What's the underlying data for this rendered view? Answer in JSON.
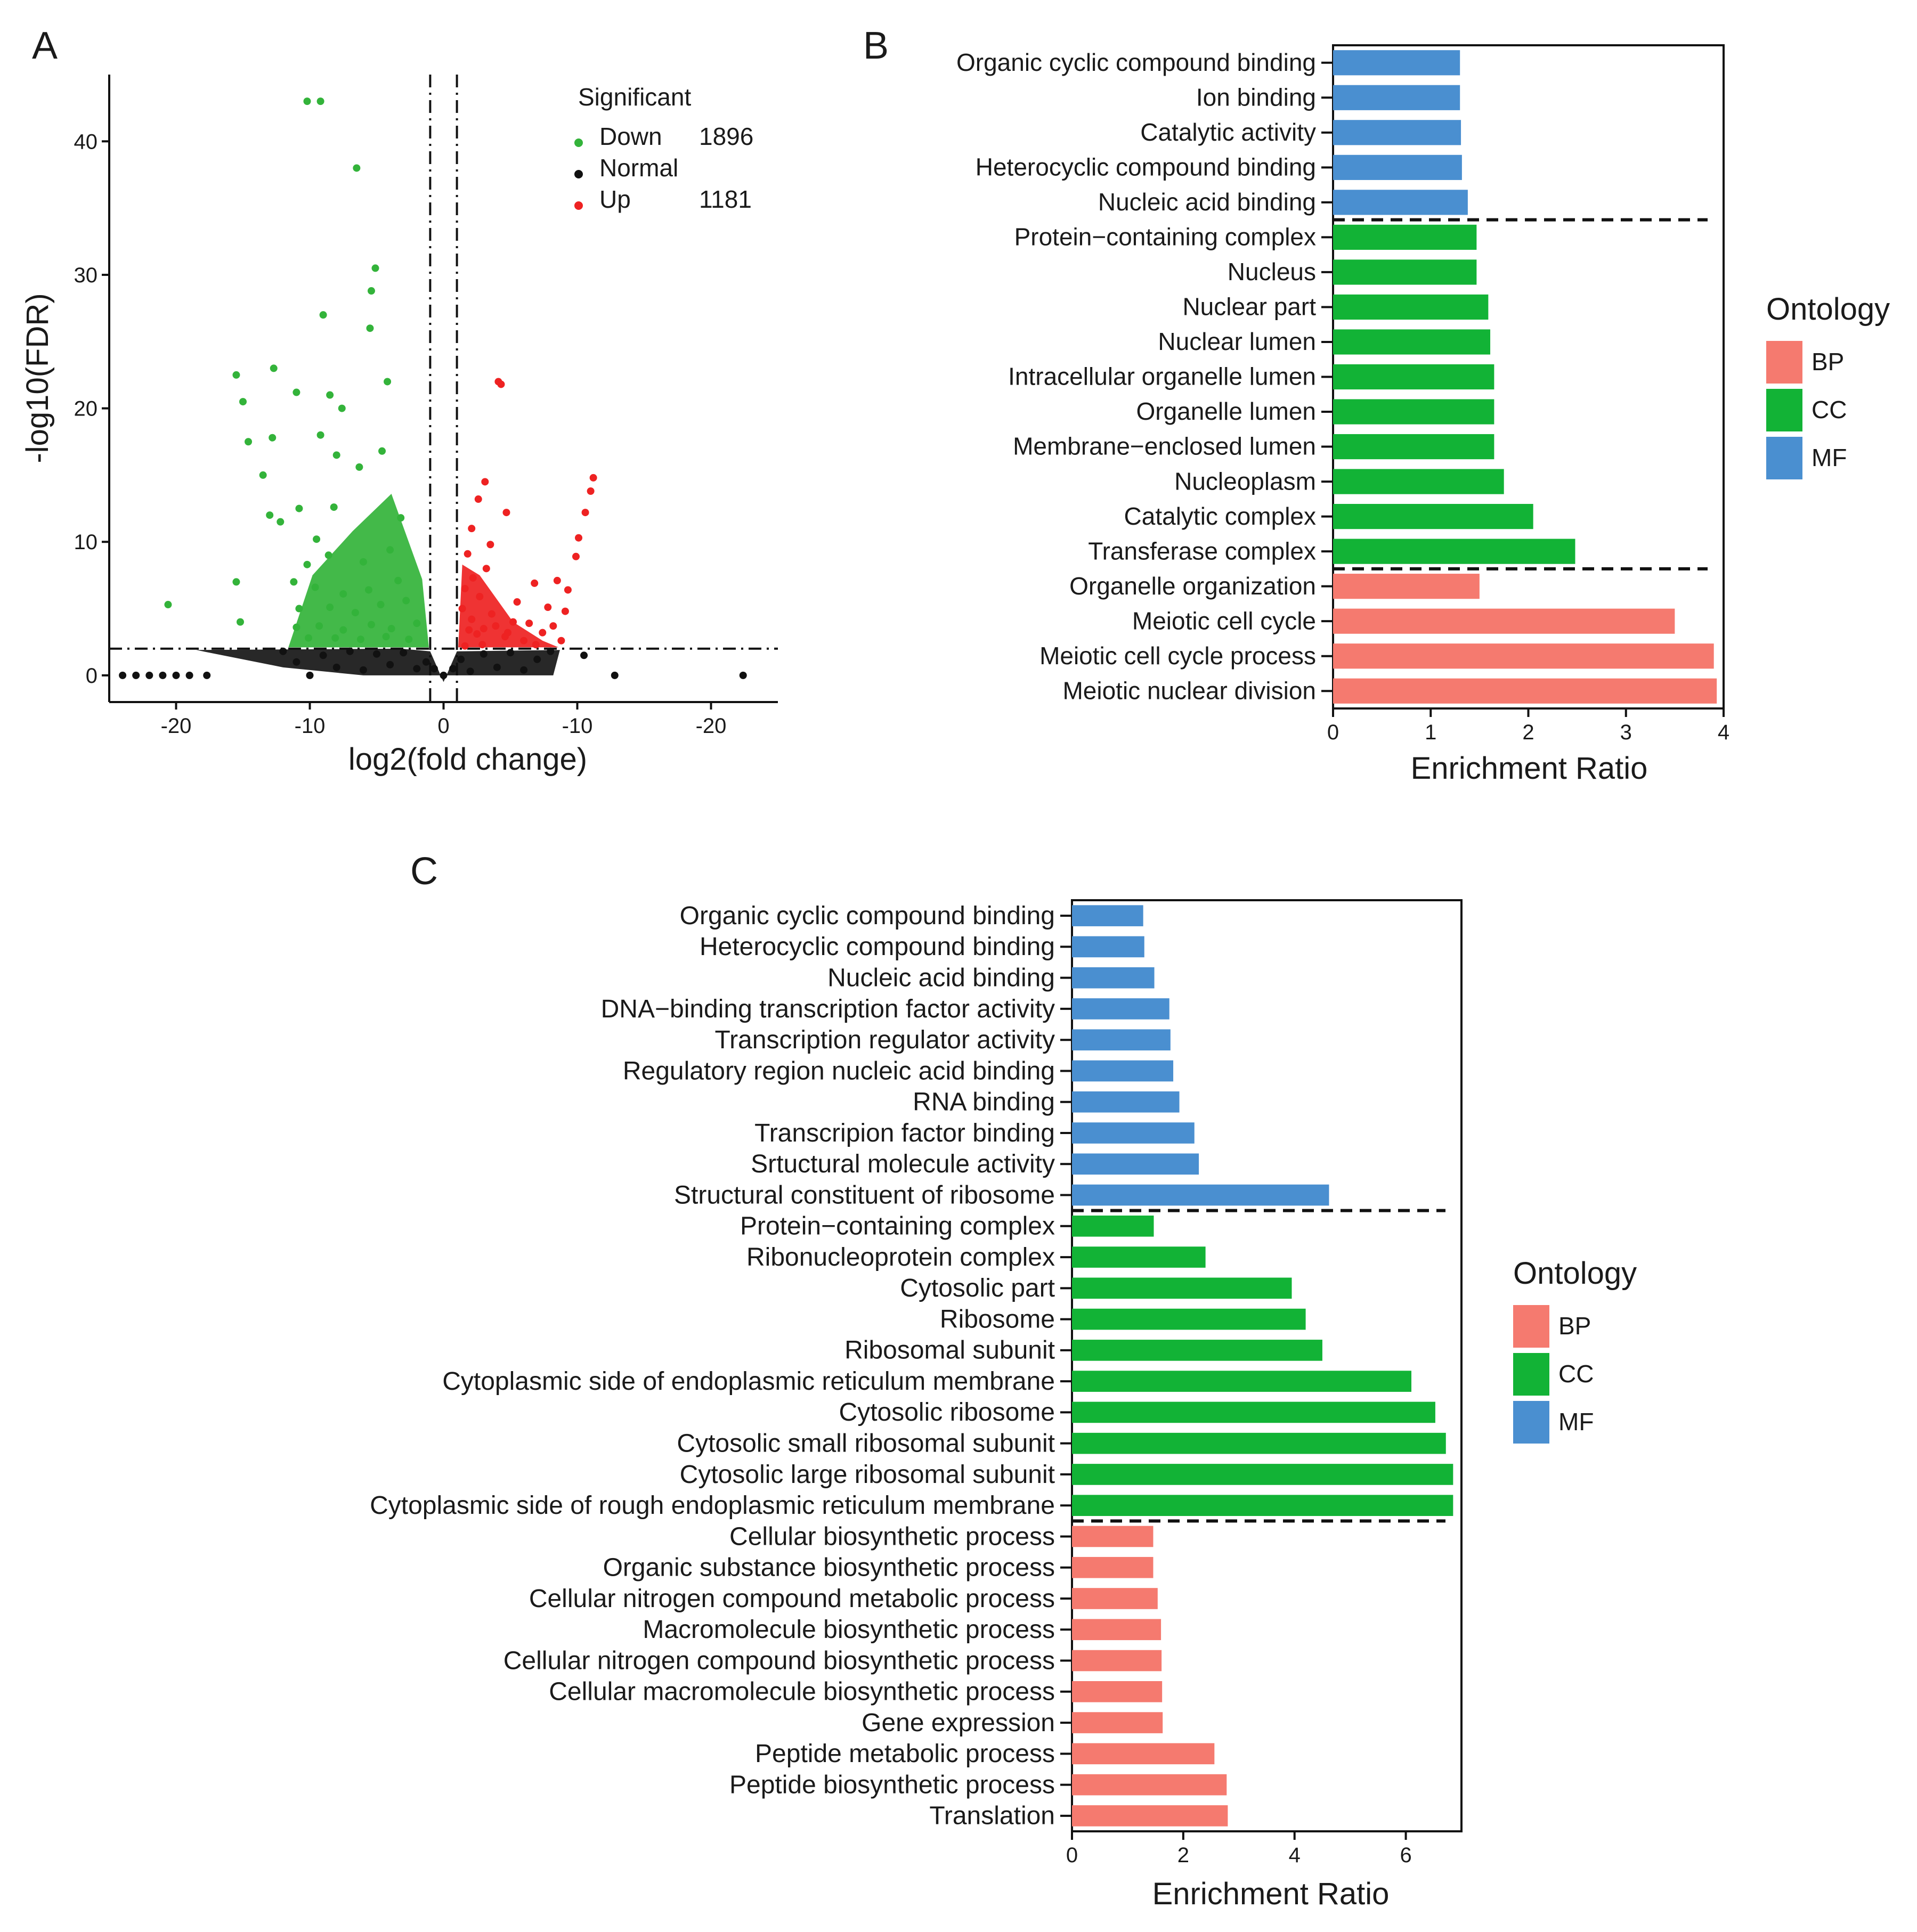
{
  "colors": {
    "BP": "#f57a6f",
    "CC": "#12b336",
    "MF": "#4a8fd0",
    "down": "#33b33a",
    "normal": "#111111",
    "up": "#ee2222"
  },
  "chart_data": [
    {
      "panel": "A",
      "type": "scatter",
      "xlabel": "log2(fold change)",
      "ylabel": "-log10(FDR)",
      "xticks": [
        "-20",
        "-10",
        "0",
        "-10",
        "-20"
      ],
      "xlim": [
        -25,
        25
      ],
      "yticks": [
        0,
        10,
        20,
        30,
        40
      ],
      "ylim": [
        -2,
        45
      ],
      "thresholds": {
        "x": [
          -1,
          1
        ],
        "y": 2
      },
      "legend": {
        "title": "Significant",
        "position": "top-right",
        "items": [
          {
            "key": "down",
            "label": "Down",
            "count": "1896"
          },
          {
            "key": "normal",
            "label": "Normal",
            "count": ""
          },
          {
            "key": "up",
            "label": "Up",
            "count": "1181"
          }
        ]
      },
      "series": [
        {
          "name": "Down",
          "points": [
            [
              -10.2,
              43
            ],
            [
              -9.2,
              43
            ],
            [
              -6.5,
              38
            ],
            [
              -5.1,
              30.5
            ],
            [
              -5.4,
              28.8
            ],
            [
              -9,
              27
            ],
            [
              -5.5,
              26
            ],
            [
              -15.5,
              22.5
            ],
            [
              -12.7,
              23
            ],
            [
              -15,
              20.5
            ],
            [
              -14.6,
              17.5
            ],
            [
              -4.2,
              22
            ],
            [
              -8.5,
              21
            ],
            [
              -7.6,
              20
            ],
            [
              -11,
              21.2
            ],
            [
              -12.8,
              17.8
            ],
            [
              -13.5,
              15
            ],
            [
              -9.2,
              18
            ],
            [
              -8,
              16.5
            ],
            [
              -6.3,
              15.6
            ],
            [
              -4.6,
              16.8
            ],
            [
              -12.2,
              11.5
            ],
            [
              -15.5,
              7
            ],
            [
              -20.6,
              5.3
            ],
            [
              -15.2,
              4
            ],
            [
              -13,
              12
            ],
            [
              -10.8,
              12.5
            ],
            [
              -8.2,
              12.6
            ],
            [
              -9.5,
              10.2
            ],
            [
              -3.2,
              11.8
            ],
            [
              -10.2,
              8.3
            ],
            [
              -8.6,
              9
            ],
            [
              -6,
              8.5
            ],
            [
              -4,
              9.4
            ],
            [
              -11.2,
              7
            ],
            [
              -9.6,
              6.6
            ],
            [
              -7.5,
              6.1
            ],
            [
              -5.6,
              6.4
            ],
            [
              -3.4,
              7.1
            ],
            [
              -10.8,
              5
            ],
            [
              -8.5,
              5.1
            ],
            [
              -6.6,
              4.7
            ],
            [
              -4.7,
              5.3
            ],
            [
              -2.8,
              5.6
            ],
            [
              -11,
              3.6
            ],
            [
              -9.3,
              3.7
            ],
            [
              -7.5,
              3.4
            ],
            [
              -5.4,
              3.8
            ],
            [
              -3.9,
              3.5
            ],
            [
              -2,
              3.9
            ],
            [
              -10.1,
              2.8
            ],
            [
              -8.1,
              2.8
            ],
            [
              -6.2,
              2.7
            ],
            [
              -4.3,
              2.9
            ],
            [
              -2.6,
              2.7
            ]
          ]
        },
        {
          "name": "Normal",
          "points": [
            [
              -24,
              0
            ],
            [
              -23,
              0
            ],
            [
              -22,
              0
            ],
            [
              -21,
              0
            ],
            [
              -20,
              0
            ],
            [
              -19,
              0
            ],
            [
              -17.7,
              0
            ],
            [
              -12,
              1.8
            ],
            [
              -11,
              1
            ],
            [
              -10,
              0
            ],
            [
              -9,
              1.5
            ],
            [
              -8,
              0.6
            ],
            [
              -7,
              1.8
            ],
            [
              -6,
              0.4
            ],
            [
              -5,
              1.6
            ],
            [
              -4,
              0.8
            ],
            [
              -3,
              1.7
            ],
            [
              -2,
              0.5
            ],
            [
              -1.3,
              1
            ],
            [
              -0.7,
              0.5
            ],
            [
              0,
              0
            ],
            [
              0.7,
              0.5
            ],
            [
              1.3,
              1.2
            ],
            [
              2,
              0.3
            ],
            [
              3,
              1.6
            ],
            [
              4,
              0.6
            ],
            [
              5,
              1.7
            ],
            [
              6,
              0.4
            ],
            [
              7,
              1.2
            ],
            [
              8,
              1.8
            ],
            [
              10.5,
              1.5
            ],
            [
              12.8,
              0
            ],
            [
              22.4,
              0
            ]
          ]
        },
        {
          "name": "Up",
          "points": [
            [
              4.3,
              21.8
            ],
            [
              4.1,
              22
            ],
            [
              3.1,
              14.5
            ],
            [
              2.6,
              13.2
            ],
            [
              4.7,
              12.2
            ],
            [
              2.1,
              11
            ],
            [
              3.5,
              9.8
            ],
            [
              1.8,
              9.1
            ],
            [
              3.2,
              8
            ],
            [
              2.2,
              7.3
            ],
            [
              1.6,
              6.5
            ],
            [
              2.7,
              5.9
            ],
            [
              1.4,
              5
            ],
            [
              2.1,
              4.2
            ],
            [
              3,
              3.5
            ],
            [
              3.9,
              3.7
            ],
            [
              5.2,
              4
            ],
            [
              6.8,
              6.9
            ],
            [
              8.5,
              7.1
            ],
            [
              7.4,
              3.2
            ],
            [
              6,
              2.6
            ],
            [
              4.6,
              2.9
            ],
            [
              2.9,
              2.3
            ],
            [
              1.6,
              2.2
            ],
            [
              8.2,
              3.7
            ],
            [
              9.3,
              6.4
            ],
            [
              9.9,
              8.9
            ],
            [
              10.1,
              10.3
            ],
            [
              10.6,
              12.2
            ],
            [
              11,
              13.8
            ],
            [
              11.2,
              14.8
            ],
            [
              9.1,
              4.8
            ],
            [
              7.8,
              5.1
            ],
            [
              6.4,
              3.9
            ],
            [
              5.5,
              5.5
            ],
            [
              2.5,
              3.1
            ],
            [
              3.6,
              4.6
            ],
            [
              4.8,
              3.2
            ],
            [
              1.9,
              3.4
            ],
            [
              6.9,
              2.3
            ],
            [
              8.8,
              2.6
            ]
          ]
        }
      ]
    },
    {
      "panel": "B",
      "type": "bar",
      "orientation": "horizontal",
      "xlabel": "Enrichment Ratio",
      "xticks": [
        0,
        1,
        2,
        3,
        4
      ],
      "xlim": [
        0,
        4
      ],
      "legend": {
        "title": "Ontology",
        "items": [
          "BP",
          "CC",
          "MF"
        ]
      },
      "groups": [
        {
          "ontology": "MF",
          "items": [
            {
              "label": "Organic cyclic compound binding",
              "value": 1.3
            },
            {
              "label": "Ion binding",
              "value": 1.3
            },
            {
              "label": "Catalytic activity",
              "value": 1.31
            },
            {
              "label": "Heterocyclic compound binding",
              "value": 1.32
            },
            {
              "label": "Nucleic acid binding",
              "value": 1.38
            }
          ]
        },
        {
          "ontology": "CC",
          "items": [
            {
              "label": "Protein−containing complex",
              "value": 1.47
            },
            {
              "label": "Nucleus",
              "value": 1.47
            },
            {
              "label": "Nuclear part",
              "value": 1.59
            },
            {
              "label": "Nuclear lumen",
              "value": 1.61
            },
            {
              "label": "Intracellular organelle lumen",
              "value": 1.65
            },
            {
              "label": "Organelle lumen",
              "value": 1.65
            },
            {
              "label": "Membrane−enclosed lumen",
              "value": 1.65
            },
            {
              "label": "Nucleoplasm",
              "value": 1.75
            },
            {
              "label": "Catalytic complex",
              "value": 2.05
            },
            {
              "label": "Transferase complex",
              "value": 2.48
            }
          ]
        },
        {
          "ontology": "BP",
          "items": [
            {
              "label": "Organelle organization",
              "value": 1.5
            },
            {
              "label": "Meiotic cell cycle",
              "value": 3.5
            },
            {
              "label": "Meiotic cell cycle process",
              "value": 3.9
            },
            {
              "label": "Meiotic nuclear division",
              "value": 3.93
            }
          ]
        }
      ]
    },
    {
      "panel": "C",
      "type": "bar",
      "orientation": "horizontal",
      "xlabel": "Enrichment Ratio",
      "xticks": [
        0,
        2,
        4,
        6
      ],
      "xlim": [
        0,
        7
      ],
      "legend": {
        "title": "Ontology",
        "items": [
          "BP",
          "CC",
          "MF"
        ]
      },
      "groups": [
        {
          "ontology": "MF",
          "items": [
            {
              "label": "Organic cyclic compound binding",
              "value": 1.28
            },
            {
              "label": "Heterocyclic compound binding",
              "value": 1.3
            },
            {
              "label": "Nucleic acid binding",
              "value": 1.48
            },
            {
              "label": "DNA−binding transcription factor activity",
              "value": 1.75
            },
            {
              "label": "Transcription regulator activity",
              "value": 1.77
            },
            {
              "label": "Regulatory region nucleic acid binding",
              "value": 1.82
            },
            {
              "label": "RNA binding",
              "value": 1.93
            },
            {
              "label": "Transcripion factor binding",
              "value": 2.2
            },
            {
              "label": "Srtuctural molecule activity",
              "value": 2.28
            },
            {
              "label": "Structural constituent of ribosome",
              "value": 4.62
            }
          ]
        },
        {
          "ontology": "CC",
          "items": [
            {
              "label": "Protein−containing complex",
              "value": 1.47
            },
            {
              "label": "Ribonucleoprotein complex",
              "value": 2.4
            },
            {
              "label": "Cytosolic part",
              "value": 3.95
            },
            {
              "label": "Ribosome",
              "value": 4.2
            },
            {
              "label": "Ribosomal subunit",
              "value": 4.5
            },
            {
              "label": "Cytoplasmic side of endoplasmic reticulum membrane",
              "value": 6.1
            },
            {
              "label": "Cytosolic ribosome",
              "value": 6.53
            },
            {
              "label": "Cytosolic small ribosomal subunit",
              "value": 6.72
            },
            {
              "label": "Cytosolic large ribosomal subunit",
              "value": 6.85
            },
            {
              "label": "Cytoplasmic side of rough endoplasmic reticulum membrane",
              "value": 6.85
            }
          ]
        },
        {
          "ontology": "BP",
          "items": [
            {
              "label": "Cellular biosynthetic process",
              "value": 1.46
            },
            {
              "label": "Organic substance biosynthetic process",
              "value": 1.46
            },
            {
              "label": "Cellular nitrogen compound metabolic process",
              "value": 1.54
            },
            {
              "label": "Macromolecule biosynthetic process",
              "value": 1.6
            },
            {
              "label": "Cellular nitrogen compound biosynthetic process",
              "value": 1.61
            },
            {
              "label": "Cellular macromolecule biosynthetic process",
              "value": 1.62
            },
            {
              "label": "Gene expression",
              "value": 1.63
            },
            {
              "label": "Peptide metabolic process",
              "value": 2.56
            },
            {
              "label": "Peptide biosynthetic process",
              "value": 2.78
            },
            {
              "label": "Translation",
              "value": 2.8
            }
          ]
        }
      ]
    }
  ]
}
